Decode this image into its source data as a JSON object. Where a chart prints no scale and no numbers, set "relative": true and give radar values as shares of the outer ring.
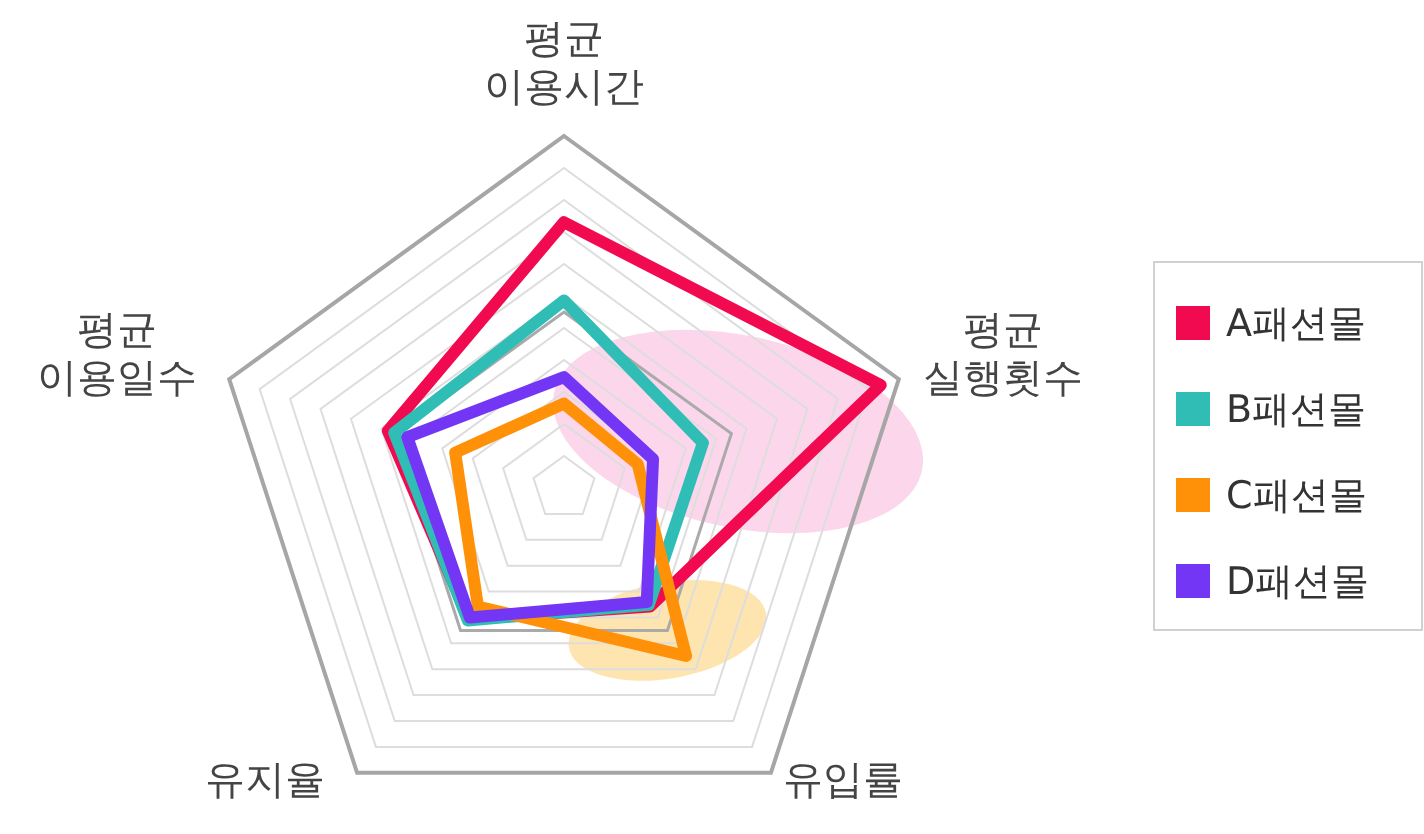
{
  "chart_data": {
    "type": "radar",
    "relative": true,
    "grid": true,
    "legend": "right",
    "categories": [
      "평균\n이용시간",
      "평균\n실행횟수",
      "유입률",
      "유지율",
      "평균\n이용일수"
    ],
    "series": [
      {
        "name": "A패션몰",
        "color": "#f20a50",
        "values": [
          0.755,
          0.946,
          0.416,
          0.46,
          0.526
        ]
      },
      {
        "name": "B패션몰",
        "color": "#2fbdb6",
        "values": [
          0.533,
          0.415,
          0.41,
          0.465,
          0.507
        ]
      },
      {
        "name": "C패션몰",
        "color": "#ff9108",
        "values": [
          0.24,
          0.22,
          0.59,
          0.416,
          0.325
        ]
      },
      {
        "name": "D패션몰",
        "color": "#7436f5",
        "values": [
          0.315,
          0.266,
          0.4,
          0.455,
          0.468
        ]
      }
    ]
  }
}
